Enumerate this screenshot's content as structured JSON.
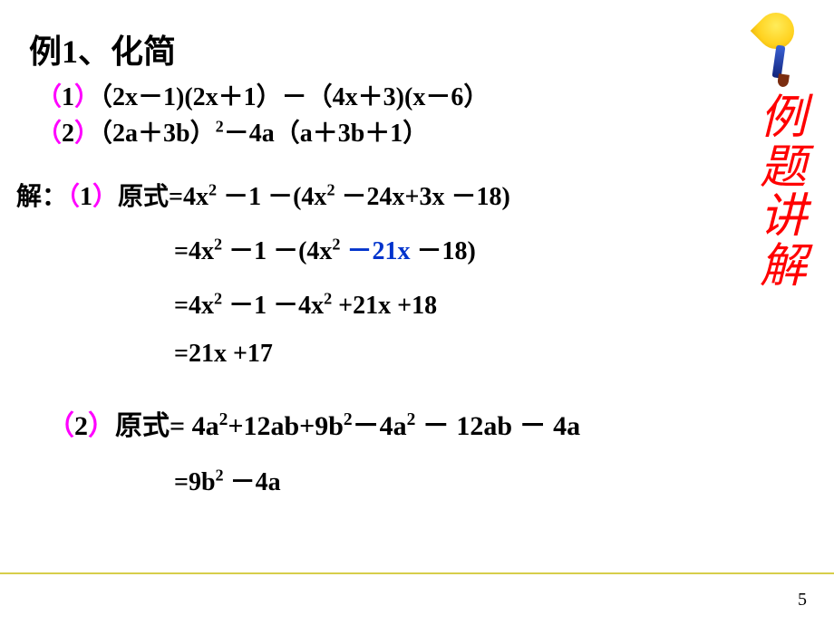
{
  "colors": {
    "accent_paren": "#ff00ff",
    "highlight": "#0033cc",
    "rule": "#d7ce4a",
    "vert_text": "#ff0000",
    "brush_head": "#ffd21f",
    "brush_stick": "#1c3aa9",
    "brush_tip": "#7b2d10",
    "bg": "#ffffff"
  },
  "page_number": "5",
  "sidebar_chars": [
    "例",
    "题",
    "讲",
    "解"
  ],
  "title": "例1、化简",
  "paren": {
    "open": "（",
    "close": "）"
  },
  "problem1": {
    "label": "1",
    "body": "（2x－1)(2x＋1）－（4x＋3)(x－6）"
  },
  "problem2": {
    "label": "2",
    "body_pre": "（2a＋3b）",
    "body_sup": "2",
    "body_post": "－4a（a＋3b＋1）"
  },
  "sol_label": "解：",
  "sol1": {
    "label": "1",
    "prefix": "原式=",
    "step1": {
      "a": "4x",
      "a_sup": "2",
      "b": " －1 －(4x",
      "b_sup": "2",
      "c": " －24x+3x －18)"
    },
    "step2": {
      "eq": "=4x",
      "a_sup": "2",
      "mid": " －1 －(4x",
      "b_sup": "2",
      "sp": " ",
      "h": "－21x",
      "tail": " －18)"
    },
    "step3": {
      "eq": "=4x",
      "a_sup": "2",
      "mid": " －1 －4x",
      "b_sup": "2",
      "tail": " +21x +18"
    },
    "step4": "=21x +17"
  },
  "sol2": {
    "label": "2",
    "prefix": "原式=",
    "step1": {
      "a": " 4a",
      "s1": "2",
      "b": "+12ab+9b",
      "s2": "2",
      "c": "－4a",
      "s3": "2",
      "d": " － 12ab － 4a"
    },
    "step2": {
      "a": "=9b",
      "s": "2",
      "b": " －4a"
    }
  }
}
